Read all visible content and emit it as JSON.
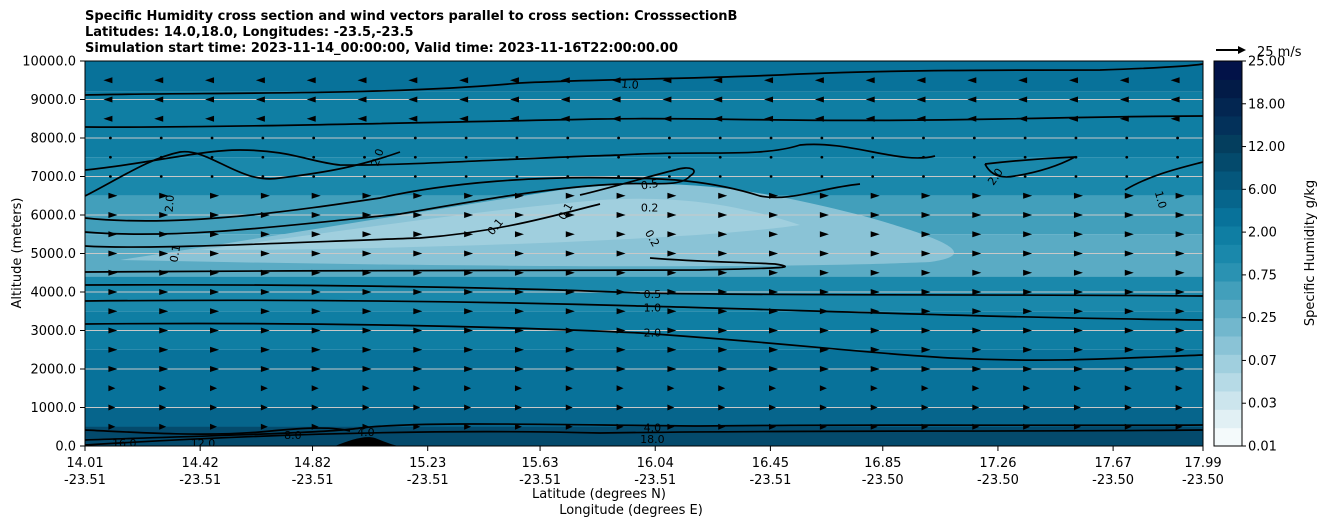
{
  "chart_data": {
    "type": "heatmap",
    "title_lines": [
      "Specific Humidity cross section and wind vectors parallel to cross section: CrosssectionB",
      "Latitudes: 14.0,18.0, Longitudes: -23.5,-23.5",
      "Simulation start time: 2023-11-14_00:00:00, Valid time: 2023-11-16T22:00:00.00"
    ],
    "ylabel": "Altitude (meters)",
    "xlabel_lines": [
      "Latitude (degrees N)",
      "Longitude (degrees E)"
    ],
    "ylim": [
      0,
      10000
    ],
    "y_ticks": [
      "0.0",
      "1000.0",
      "2000.0",
      "3000.0",
      "4000.0",
      "5000.0",
      "6000.0",
      "7000.0",
      "8000.0",
      "9000.0",
      "10000.0"
    ],
    "x_ticks": [
      {
        "lat": "14.01",
        "lon": "-23.51"
      },
      {
        "lat": "14.42",
        "lon": "-23.51"
      },
      {
        "lat": "14.82",
        "lon": "-23.51"
      },
      {
        "lat": "15.23",
        "lon": "-23.51"
      },
      {
        "lat": "15.63",
        "lon": "-23.51"
      },
      {
        "lat": "16.04",
        "lon": "-23.51"
      },
      {
        "lat": "16.45",
        "lon": "-23.51"
      },
      {
        "lat": "16.85",
        "lon": "-23.50"
      },
      {
        "lat": "17.26",
        "lon": "-23.50"
      },
      {
        "lat": "17.67",
        "lon": "-23.50"
      },
      {
        "lat": "17.99",
        "lon": "-23.50"
      }
    ],
    "colorbar": {
      "label": "Specific Humidity g/kg",
      "levels": [
        "0.01",
        "0.03",
        "0.07",
        "0.25",
        "0.75",
        "2.00",
        "6.00",
        "12.00",
        "18.00",
        "25.00"
      ],
      "band_colors": [
        "#f4fafb",
        "#e1f0f4",
        "#cce5ed",
        "#b6dae6",
        "#a0cfde",
        "#8ac3d6",
        "#72b7cd",
        "#5aabc4",
        "#429fbb",
        "#2a92b2",
        "#1a88ab",
        "#0f7ea3",
        "#08729a",
        "#06658c",
        "#05577c",
        "#044a6c",
        "#043e5e",
        "#03315a",
        "#032651",
        "#021b47",
        "#021248"
      ]
    },
    "quiver_key": {
      "label": "25 m/s",
      "speed": 25
    },
    "contour_labels": [
      {
        "text": "1.0",
        "lat": 15.95,
        "alt": 9400,
        "angle": 5
      },
      {
        "text": "2.0",
        "lat": 15.05,
        "alt": 7500,
        "angle": -70
      },
      {
        "text": "2.0",
        "lat": 14.31,
        "alt": 6300,
        "angle": -85
      },
      {
        "text": "0.1",
        "lat": 14.33,
        "alt": 5000,
        "angle": -80
      },
      {
        "text": "0.1",
        "lat": 15.47,
        "alt": 5700,
        "angle": -50
      },
      {
        "text": "0.1",
        "lat": 15.72,
        "alt": 6100,
        "angle": -60
      },
      {
        "text": "0.5",
        "lat": 16.02,
        "alt": 6800,
        "angle": -10
      },
      {
        "text": "0.2",
        "lat": 16.02,
        "alt": 6200,
        "angle": 0
      },
      {
        "text": "0.2",
        "lat": 16.03,
        "alt": 5400,
        "angle": 60
      },
      {
        "text": "2.0",
        "lat": 17.25,
        "alt": 7000,
        "angle": -55
      },
      {
        "text": "1.0",
        "lat": 17.84,
        "alt": 6400,
        "angle": 75
      },
      {
        "text": "0.5",
        "lat": 16.03,
        "alt": 3950,
        "angle": 0
      },
      {
        "text": "1.0",
        "lat": 16.03,
        "alt": 3600,
        "angle": 0
      },
      {
        "text": "2.0",
        "lat": 16.03,
        "alt": 2950,
        "angle": 0
      },
      {
        "text": "4.0",
        "lat": 16.03,
        "alt": 480,
        "angle": 0
      },
      {
        "text": "8.0",
        "lat": 14.75,
        "alt": 280,
        "angle": 0
      },
      {
        "text": "4.0",
        "lat": 15.01,
        "alt": 360,
        "angle": 0
      },
      {
        "text": "12.0",
        "lat": 14.43,
        "alt": 80,
        "angle": 0
      },
      {
        "text": "16.0",
        "lat": 14.15,
        "alt": 80,
        "angle": 0
      },
      {
        "text": "18.0",
        "lat": 16.03,
        "alt": 180,
        "angle": 0
      }
    ],
    "grid": true
  }
}
